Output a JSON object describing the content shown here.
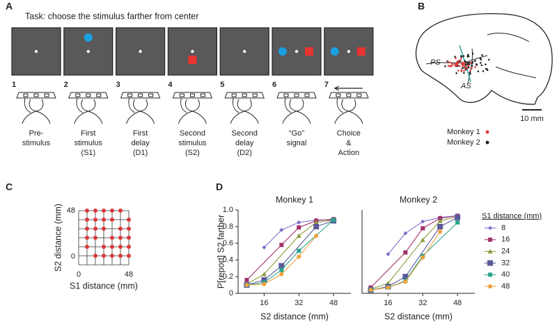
{
  "panel_a": {
    "label": "A",
    "task": "Task: choose the stimulus farther from center",
    "steps": [
      {
        "number": 1,
        "label": [
          "Pre-",
          "stimulus"
        ]
      },
      {
        "number": 2,
        "label": [
          "First",
          "stimulus",
          "(S1)"
        ]
      },
      {
        "number": 3,
        "label": [
          "First",
          "delay",
          "(D1)"
        ]
      },
      {
        "number": 4,
        "label": [
          "Second",
          "stimulus",
          "(S2)"
        ]
      },
      {
        "number": 5,
        "label": [
          "Second",
          "delay",
          "(D2)"
        ]
      },
      {
        "number": 6,
        "label": [
          "“Go”",
          "signal"
        ]
      },
      {
        "number": 7,
        "label": [
          "Choice",
          "&",
          "Action"
        ]
      }
    ]
  },
  "panel_b": {
    "label": "B",
    "sulci": [
      "PS",
      "AS"
    ],
    "scale": "10 mm",
    "legend": [
      "Monkey 1",
      "Monkey 2"
    ]
  },
  "chart_data": [
    {
      "type": "scatter",
      "panel": "C",
      "xlabel": "S1 distance (mm)",
      "ylabel": "S2 distance (mm)",
      "color": "#d93a3a",
      "x": [
        8,
        16,
        24,
        32,
        40,
        8,
        16,
        24,
        32,
        48,
        8,
        16,
        24,
        40,
        48,
        8,
        16,
        32,
        40,
        48,
        8,
        24,
        32,
        40,
        48,
        16,
        24,
        32,
        40,
        48
      ],
      "values": [
        48,
        48,
        48,
        48,
        48,
        40,
        40,
        40,
        40,
        40,
        32,
        32,
        32,
        32,
        32,
        24,
        24,
        24,
        24,
        24,
        16,
        16,
        16,
        16,
        16,
        8,
        8,
        8,
        8,
        8
      ],
      "xlim": [
        0,
        48
      ],
      "ylim": [
        0,
        48
      ],
      "xticks": [
        0,
        48
      ],
      "yticks": [
        0,
        48
      ],
      "xgrid": [
        0,
        8,
        16,
        24,
        32,
        40,
        48
      ],
      "ygrid": [
        0,
        8,
        16,
        24,
        32,
        40,
        48
      ]
    },
    {
      "type": "line",
      "panel": "D",
      "title": "Monkey 1",
      "xlabel": "S2 distance (mm)",
      "ylabel": "P[report] S2  farther",
      "legend_title": "S1 distance (mm)",
      "xlim": [
        4,
        56
      ],
      "ylim": [
        0,
        1
      ],
      "xticks": [
        16,
        32,
        48
      ],
      "yticks": [
        0,
        0.2,
        0.4,
        0.6,
        0.8,
        {
          "value": 1,
          "label": "1.0"
        }
      ],
      "series": [
        {
          "name": "8",
          "color": "#7b6fc8",
          "marker": "diamond",
          "x": [
            16,
            24,
            32,
            40,
            48
          ],
          "values": [
            0.55,
            0.76,
            0.85,
            0.88,
            0.88
          ]
        },
        {
          "name": "16",
          "color": "#a0306a",
          "marker": "square",
          "x": [
            8,
            24,
            32,
            40,
            48
          ],
          "values": [
            0.16,
            0.58,
            0.79,
            0.87,
            0.89
          ]
        },
        {
          "name": "24",
          "color": "#8a9a3a",
          "marker": "triangle",
          "x": [
            8,
            16,
            32,
            40,
            48
          ],
          "values": [
            0.11,
            0.23,
            0.69,
            0.85,
            0.88
          ]
        },
        {
          "name": "32",
          "color": "#5a5a9a",
          "marker": "bigsquare",
          "x": [
            8,
            16,
            24,
            40,
            48
          ],
          "values": [
            0.1,
            0.16,
            0.33,
            0.8,
            0.87
          ]
        },
        {
          "name": "40",
          "color": "#2aa58a",
          "marker": "square",
          "x": [
            8,
            16,
            24,
            32,
            48
          ],
          "values": [
            0.1,
            0.13,
            0.28,
            0.51,
            0.88
          ]
        },
        {
          "name": "48",
          "color": "#f0a040",
          "marker": "circle",
          "x": [
            8,
            16,
            24,
            32,
            40
          ],
          "values": [
            0.1,
            0.11,
            0.23,
            0.44,
            0.69
          ]
        }
      ]
    },
    {
      "type": "line",
      "title": "Monkey 2",
      "xlabel": "S2 distance (mm)",
      "xlim": [
        4,
        56
      ],
      "ylim": [
        0,
        1
      ],
      "xticks": [
        16,
        32,
        48
      ],
      "series": [
        {
          "color": "#7b6fc8",
          "marker": "diamond",
          "x": [
            16,
            24,
            32,
            40,
            48
          ],
          "values": [
            0.47,
            0.72,
            0.86,
            0.91,
            0.93
          ]
        },
        {
          "color": "#a0306a",
          "marker": "square",
          "x": [
            8,
            24,
            32,
            40,
            48
          ],
          "values": [
            0.07,
            0.49,
            0.78,
            0.9,
            0.93
          ]
        },
        {
          "color": "#8a9a3a",
          "marker": "triangle",
          "x": [
            8,
            16,
            32,
            40,
            48
          ],
          "values": [
            0.05,
            0.12,
            0.64,
            0.87,
            0.92
          ]
        },
        {
          "color": "#5a5a9a",
          "marker": "bigsquare",
          "x": [
            8,
            16,
            24,
            40,
            48
          ],
          "values": [
            0.04,
            0.08,
            0.2,
            0.8,
            0.91
          ]
        },
        {
          "color": "#2aa58a",
          "marker": "square",
          "x": [
            8,
            16,
            24,
            32,
            48
          ],
          "values": [
            0.04,
            0.07,
            0.15,
            0.45,
            0.85
          ]
        },
        {
          "color": "#f0a040",
          "marker": "circle",
          "x": [
            8,
            16,
            24,
            32,
            40
          ],
          "values": [
            0.04,
            0.07,
            0.14,
            0.43,
            0.74
          ]
        }
      ]
    }
  ]
}
